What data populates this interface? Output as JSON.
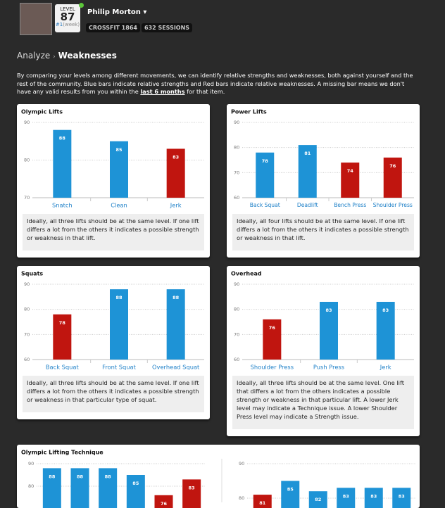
{
  "header": {
    "level_label": "LEVEL",
    "level": 87,
    "rank": "#1",
    "rank_period": "(week)",
    "name": "Philip Morton",
    "badges": [
      "CROSSFIT 1864",
      "632 SESSIONS"
    ]
  },
  "breadcrumb": {
    "parent": "Analyze",
    "current": "Weaknesses"
  },
  "intro": {
    "before": "By comparing your levels among different movements, we can identify relative strengths and weaknesses, both against yourself and the rest of the community. Blue bars indicate relative strengths and Red bars indicate relative weaknesses. A missing bar means we don't have any valid results from you within the ",
    "link": "last 6 months",
    "after": " for that item."
  },
  "chart_data": [
    {
      "type": "bar",
      "title": "Olympic Lifts",
      "categories": [
        "Snatch",
        "Clean",
        "Jerk"
      ],
      "values": [
        88,
        85,
        83
      ],
      "colors": [
        "#1e93d6",
        "#1e93d6",
        "#c0150f"
      ],
      "ylim": [
        70,
        90
      ],
      "yticks": [
        70,
        80,
        90
      ],
      "grid": true,
      "note": "Ideally, all three lifts should be at the same level. If one lift differs a lot from the others it indicates a possible strength or weakness in that lift."
    },
    {
      "type": "bar",
      "title": "Power Lifts",
      "categories": [
        "Back Squat",
        "Deadlift",
        "Bench Press",
        "Shoulder Press"
      ],
      "values": [
        78,
        81,
        74,
        76
      ],
      "colors": [
        "#1e93d6",
        "#1e93d6",
        "#c0150f",
        "#c0150f"
      ],
      "ylim": [
        60,
        90
      ],
      "yticks": [
        60,
        70,
        80,
        90
      ],
      "grid": true,
      "note": "Ideally, all four lifts should be at the same level. If one lift differs a lot from the others it indicates a possible strength or weakness in that lift."
    },
    {
      "type": "bar",
      "title": "Squats",
      "categories": [
        "Back Squat",
        "Front Squat",
        "Overhead Squat"
      ],
      "values": [
        78,
        88,
        88
      ],
      "colors": [
        "#c0150f",
        "#1e93d6",
        "#1e93d6"
      ],
      "ylim": [
        60,
        90
      ],
      "yticks": [
        60,
        70,
        80,
        90
      ],
      "grid": true,
      "note": "Ideally, all three lifts should be at the same level. If one lift differs a lot from the others it indicates a possible strength or weakness in that particular type of squat."
    },
    {
      "type": "bar",
      "title": "Overhead",
      "categories": [
        "Shoulder Press",
        "Push Press",
        "Jerk"
      ],
      "values": [
        76,
        83,
        83
      ],
      "colors": [
        "#c0150f",
        "#1e93d6",
        "#1e93d6"
      ],
      "ylim": [
        60,
        90
      ],
      "yticks": [
        60,
        70,
        80,
        90
      ],
      "grid": true,
      "note": "Ideally, all three lifts should be at the same level. One lift that differs a lot from the others indicates a possible strength or weakness in that particular lift. A lower Jerk level may indicate a Technique issue. A lower Shoulder Press level may indicate a Strength issue."
    },
    {
      "type": "bar",
      "title": "Olympic Lifting Technique",
      "categories": [
        null,
        null,
        null,
        null,
        null,
        null
      ],
      "values": [
        88,
        88,
        88,
        85,
        76,
        83
      ],
      "colors": [
        "#1e93d6",
        "#1e93d6",
        "#1e93d6",
        "#1e93d6",
        "#c0150f",
        "#c0150f"
      ],
      "ylim": [
        70,
        90
      ],
      "yticks": [
        80,
        90
      ],
      "grid": true
    },
    {
      "type": "bar",
      "categories": [
        null,
        null,
        null,
        null,
        null,
        null
      ],
      "values": [
        81,
        85,
        82,
        83,
        83,
        83
      ],
      "colors": [
        "#c0150f",
        "#1e93d6",
        "#1e93d6",
        "#1e93d6",
        "#1e93d6",
        "#1e93d6"
      ],
      "ylim": [
        70,
        90
      ],
      "yticks": [
        80,
        90
      ],
      "grid": true
    }
  ]
}
